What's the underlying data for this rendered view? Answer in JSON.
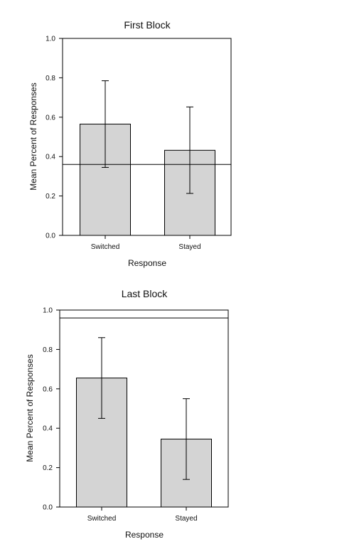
{
  "chart_data": [
    {
      "type": "bar",
      "title": "First Block",
      "xlabel": "Response",
      "ylabel": "Mean Percent of Responses",
      "categories": [
        "Switched",
        "Stayed"
      ],
      "values": [
        0.565,
        0.432
      ],
      "error_low": [
        0.345,
        0.213
      ],
      "error_high": [
        0.785,
        0.652
      ],
      "reference_line": 0.36,
      "ylim": [
        0,
        1.0
      ],
      "yticks": [
        "0.0",
        "0.2",
        "0.4",
        "0.6",
        "0.8",
        "1.0"
      ],
      "grid": false
    },
    {
      "type": "bar",
      "title": "Last Block",
      "xlabel": "Response",
      "ylabel": "Mean Percent of Responses",
      "categories": [
        "Switched",
        "Stayed"
      ],
      "values": [
        0.655,
        0.345
      ],
      "error_low": [
        0.45,
        0.14
      ],
      "error_high": [
        0.86,
        0.55
      ],
      "reference_line": 0.96,
      "ylim": [
        0,
        1.0
      ],
      "yticks": [
        "0.0",
        "0.2",
        "0.4",
        "0.6",
        "0.8",
        "1.0"
      ],
      "grid": false
    }
  ]
}
